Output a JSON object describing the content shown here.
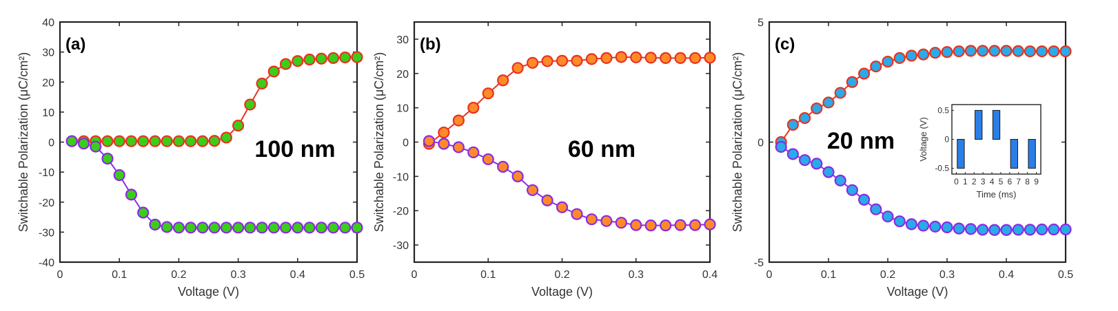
{
  "chart_data": [
    {
      "type": "line",
      "panel_label": "(a)",
      "annotation": "100 nm",
      "xlabel": "Voltage (V)",
      "ylabel": "Switchable Polarization (μC/cm²)",
      "xlim": [
        0,
        0.5
      ],
      "ylim": [
        -40,
        40
      ],
      "xticks": [
        "0",
        "0.1",
        "0.2",
        "0.3",
        "0.4",
        "0.5"
      ],
      "xtick_values": [
        0,
        0.1,
        0.2,
        0.3,
        0.4,
        0.5
      ],
      "yticks": [
        "-40",
        "-30",
        "-20",
        "-10",
        "0",
        "10",
        "20",
        "30",
        "40"
      ],
      "ytick_values": [
        -40,
        -30,
        -20,
        -10,
        0,
        10,
        20,
        30,
        40
      ],
      "x": [
        0.02,
        0.04,
        0.06,
        0.08,
        0.1,
        0.12,
        0.14,
        0.16,
        0.18,
        0.2,
        0.22,
        0.24,
        0.26,
        0.28,
        0.3,
        0.32,
        0.34,
        0.36,
        0.38,
        0.4,
        0.42,
        0.44,
        0.46,
        0.48,
        0.5
      ],
      "series": [
        {
          "name": "positive",
          "line_color": "#e8321e",
          "edge_color": "#e8321e",
          "fill_color": "#3ccc1a",
          "values": [
            0.3,
            0.3,
            0.3,
            0.3,
            0.3,
            0.3,
            0.3,
            0.3,
            0.3,
            0.3,
            0.3,
            0.3,
            0.4,
            1.5,
            5.5,
            12.5,
            19.5,
            23.5,
            26,
            27,
            27.5,
            27.8,
            28,
            28.2,
            28.3
          ]
        },
        {
          "name": "negative",
          "line_color": "#8a2be2",
          "edge_color": "#8a2be2",
          "fill_color": "#3ccc1a",
          "values": [
            0.3,
            -0.5,
            -1.5,
            -5.5,
            -11,
            -17.5,
            -23.5,
            -27.5,
            -28.3,
            -28.5,
            -28.5,
            -28.5,
            -28.5,
            -28.5,
            -28.5,
            -28.5,
            -28.5,
            -28.5,
            -28.5,
            -28.5,
            -28.5,
            -28.5,
            -28.5,
            -28.5,
            -28.5
          ]
        }
      ]
    },
    {
      "type": "line",
      "panel_label": "(b)",
      "annotation": "60 nm",
      "xlabel": "Voltage (V)",
      "ylabel": "Switchable Polarization (μC/cm²)",
      "xlim": [
        0,
        0.4
      ],
      "ylim": [
        -35,
        35
      ],
      "xticks": [
        "0",
        "0.1",
        "0.2",
        "0.3",
        "0.4"
      ],
      "xtick_values": [
        0,
        0.1,
        0.2,
        0.3,
        0.4
      ],
      "yticks": [
        "-30",
        "-20",
        "-10",
        "0",
        "10",
        "20",
        "30"
      ],
      "ytick_values": [
        -30,
        -20,
        -10,
        0,
        10,
        20,
        30
      ],
      "x": [
        0.02,
        0.04,
        0.06,
        0.08,
        0.1,
        0.12,
        0.14,
        0.16,
        0.18,
        0.2,
        0.22,
        0.24,
        0.26,
        0.28,
        0.3,
        0.32,
        0.34,
        0.36,
        0.38,
        0.4
      ],
      "series": [
        {
          "name": "positive",
          "line_color": "#e8321e",
          "edge_color": "#e8321e",
          "fill_color": "#ff8a2a",
          "values": [
            -0.5,
            2.8,
            6.3,
            10,
            14.2,
            18,
            21.6,
            23.1,
            23.6,
            23.7,
            23.7,
            24.2,
            24.5,
            24.8,
            24.7,
            24.6,
            24.5,
            24.5,
            24.5,
            24.6
          ]
        },
        {
          "name": "negative",
          "line_color": "#8a2be2",
          "edge_color": "#8a2be2",
          "fill_color": "#ff8a2a",
          "values": [
            0.3,
            -0.5,
            -1.5,
            -3,
            -5,
            -7.2,
            -10,
            -14,
            -17,
            -19,
            -21,
            -22.5,
            -23,
            -23.5,
            -24.2,
            -24.3,
            -24.3,
            -24.2,
            -24.2,
            -24
          ]
        }
      ]
    },
    {
      "type": "line",
      "panel_label": "(c)",
      "annotation": "20 nm",
      "xlabel": "Voltage (V)",
      "ylabel": "Switchable Polarization (μC/cm²)",
      "xlim": [
        0,
        0.5
      ],
      "ylim": [
        -5,
        5
      ],
      "xticks": [
        "0",
        "0.1",
        "0.2",
        "0.3",
        "0.4",
        "0.5"
      ],
      "xtick_values": [
        0,
        0.1,
        0.2,
        0.3,
        0.4,
        0.5
      ],
      "yticks": [
        "-5",
        "0",
        "5"
      ],
      "ytick_values": [
        -5,
        0,
        5
      ],
      "x": [
        0.02,
        0.04,
        0.06,
        0.08,
        0.1,
        0.12,
        0.14,
        0.16,
        0.18,
        0.2,
        0.22,
        0.24,
        0.26,
        0.28,
        0.3,
        0.32,
        0.34,
        0.36,
        0.38,
        0.4,
        0.42,
        0.44,
        0.46,
        0.48,
        0.5
      ],
      "series": [
        {
          "name": "positive",
          "line_color": "#e8321e",
          "edge_color": "#e8321e",
          "fill_color": "#2aaae8",
          "values": [
            0,
            0.72,
            1.0,
            1.4,
            1.65,
            2.05,
            2.5,
            2.85,
            3.15,
            3.35,
            3.5,
            3.6,
            3.65,
            3.72,
            3.75,
            3.78,
            3.8,
            3.8,
            3.8,
            3.8,
            3.79,
            3.78,
            3.78,
            3.78,
            3.78
          ]
        },
        {
          "name": "negative",
          "line_color": "#8a2be2",
          "edge_color": "#8a2be2",
          "fill_color": "#2aaae8",
          "values": [
            -0.2,
            -0.5,
            -0.75,
            -0.9,
            -1.25,
            -1.6,
            -2.0,
            -2.4,
            -2.8,
            -3.1,
            -3.3,
            -3.42,
            -3.48,
            -3.52,
            -3.55,
            -3.6,
            -3.62,
            -3.65,
            -3.66,
            -3.66,
            -3.65,
            -3.65,
            -3.64,
            -3.64,
            -3.64
          ]
        }
      ],
      "inset": {
        "type": "bar",
        "xlabel": "Time (ms)",
        "ylabel": "Voltage (V)",
        "xlim": [
          -0.5,
          9.5
        ],
        "ylim": [
          -0.6,
          0.6
        ],
        "xticks": [
          "0",
          "1",
          "2",
          "3",
          "4",
          "5",
          "6",
          "7",
          "8",
          "9"
        ],
        "xtick_values": [
          0,
          1,
          2,
          3,
          4,
          5,
          6,
          7,
          8,
          9
        ],
        "yticks": [
          "0.5",
          "0",
          "-0.5"
        ],
        "ytick_values": [
          0.5,
          0,
          -0.5
        ],
        "bar_color": "#2a7ee8",
        "bars": [
          {
            "x": 0.5,
            "value": -0.5
          },
          {
            "x": 2.5,
            "value": 0.5
          },
          {
            "x": 4.5,
            "value": 0.5
          },
          {
            "x": 6.5,
            "value": -0.5
          },
          {
            "x": 8.5,
            "value": -0.5
          }
        ]
      }
    }
  ]
}
